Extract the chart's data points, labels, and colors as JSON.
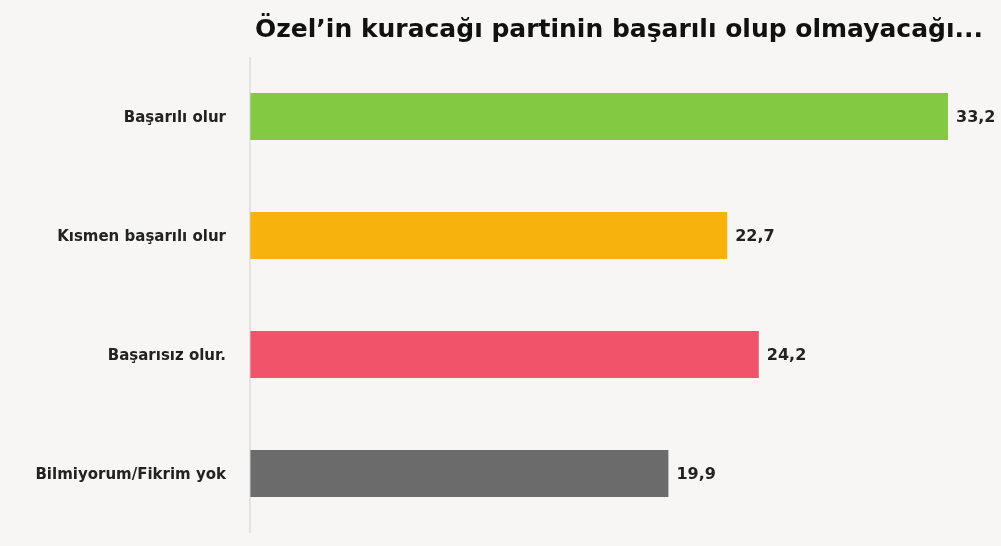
{
  "chart_data": {
    "type": "bar",
    "orientation": "horizontal",
    "title": "Özel’in kuracağı partinin başarılı olup olmayacağı...",
    "categories": [
      "Başarılı olur",
      "Kısmen başarılı olur",
      "Başarısız olur.",
      "Bilmiyorum/Fikrim yok"
    ],
    "values": [
      33.2,
      22.7,
      24.2,
      19.9
    ],
    "colors": [
      "#84c942",
      "#f7b30c",
      "#ef546b",
      "#6b6b6b"
    ],
    "value_labels": [
      "33,2",
      "22,7",
      "24,2",
      "19,9"
    ],
    "grid": false
  }
}
